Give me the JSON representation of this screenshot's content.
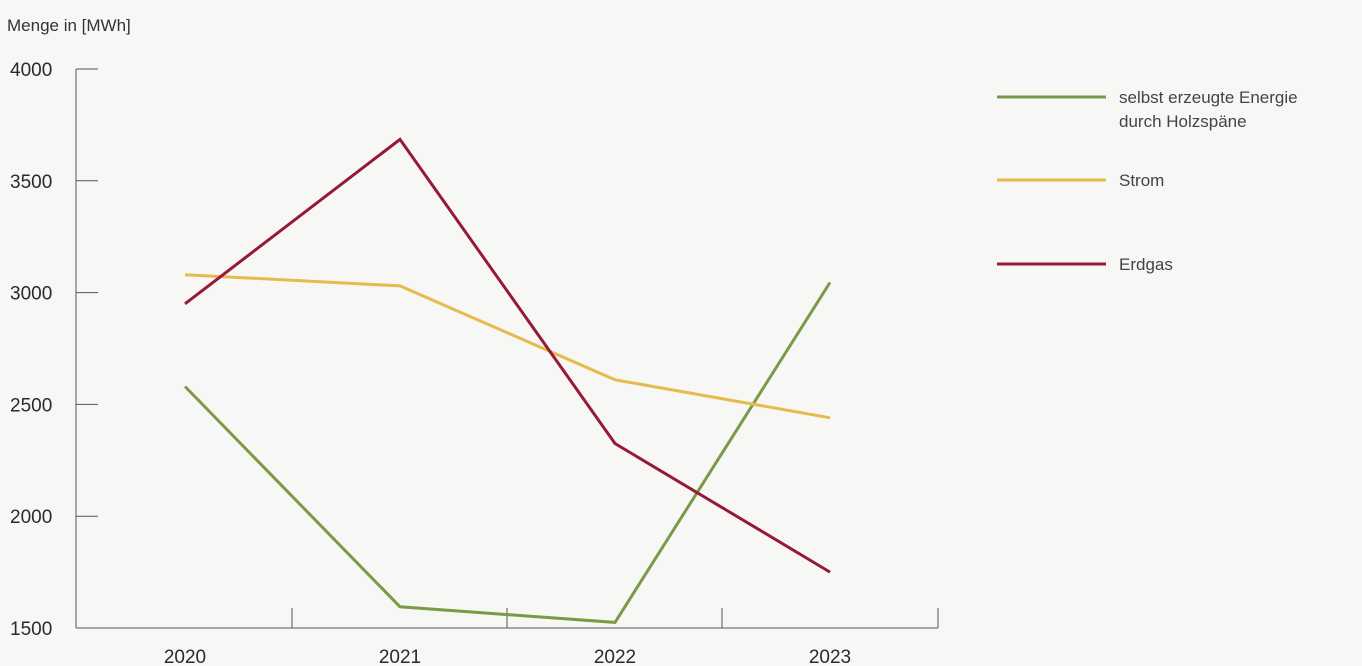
{
  "chart_data": {
    "type": "line",
    "ylabel": "Menge in [MWh]",
    "x": [
      "2020",
      "2021",
      "2022",
      "2023"
    ],
    "ylim": [
      1500,
      4000
    ],
    "yticks": [
      1500,
      2000,
      2500,
      3000,
      3500,
      4000
    ],
    "legend_position": "right",
    "grid": false,
    "series": [
      {
        "name": "selbst erzeugte Energie durch Holzspäne",
        "name_lines": [
          "selbst erzeugte Energie",
          "durch Holzspäne"
        ],
        "color": "#7a9a45",
        "values": [
          2580,
          1595,
          1525,
          3045
        ]
      },
      {
        "name": "Strom",
        "name_lines": [
          "Strom"
        ],
        "color": "#e5bb4e",
        "values": [
          3080,
          3030,
          2610,
          2440
        ]
      },
      {
        "name": "Erdgas",
        "name_lines": [
          "Erdgas"
        ],
        "color": "#961937",
        "values": [
          2950,
          3685,
          2325,
          1750
        ]
      }
    ]
  }
}
